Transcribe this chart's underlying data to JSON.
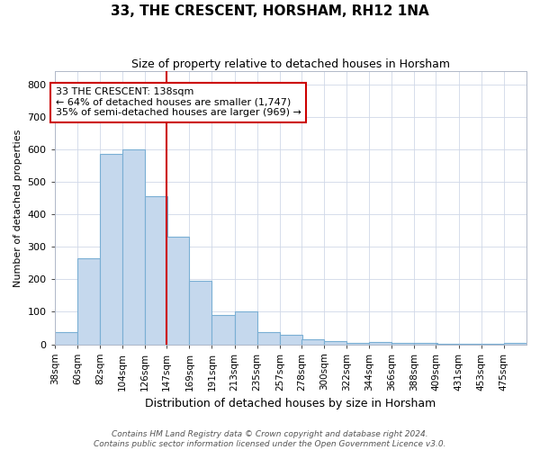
{
  "title": "33, THE CRESCENT, HORSHAM, RH12 1NA",
  "subtitle": "Size of property relative to detached houses in Horsham",
  "xlabel": "Distribution of detached houses by size in Horsham",
  "ylabel": "Number of detached properties",
  "bar_color": "#c5d8ed",
  "bar_edge_color": "#7aafd4",
  "annotation_box_color": "#cc0000",
  "vline_color": "#cc0000",
  "annotation_line1": "33 THE CRESCENT: 138sqm",
  "annotation_line2": "← 64% of detached houses are smaller (1,747)",
  "annotation_line3": "35% of semi-detached houses are larger (969) →",
  "property_size_idx": 5,
  "categories": [
    "38sqm",
    "60sqm",
    "82sqm",
    "104sqm",
    "126sqm",
    "147sqm",
    "169sqm",
    "191sqm",
    "213sqm",
    "235sqm",
    "257sqm",
    "278sqm",
    "300sqm",
    "322sqm",
    "344sqm",
    "366sqm",
    "388sqm",
    "409sqm",
    "431sqm",
    "453sqm",
    "475sqm"
  ],
  "bin_edges": [
    38,
    60,
    82,
    104,
    126,
    147,
    169,
    191,
    213,
    235,
    257,
    278,
    300,
    322,
    344,
    366,
    388,
    409,
    431,
    453,
    475
  ],
  "bin_width": 22,
  "values": [
    38,
    265,
    585,
    600,
    455,
    330,
    195,
    90,
    100,
    38,
    30,
    15,
    10,
    5,
    8,
    5,
    3,
    2,
    1,
    1,
    5
  ],
  "ylim": [
    0,
    840
  ],
  "yticks": [
    0,
    100,
    200,
    300,
    400,
    500,
    600,
    700,
    800
  ],
  "footer_line1": "Contains HM Land Registry data © Crown copyright and database right 2024.",
  "footer_line2": "Contains public sector information licensed under the Open Government Licence v3.0.",
  "background_color": "#ffffff",
  "grid_color": "#d0d8e8",
  "title_fontsize": 11,
  "subtitle_fontsize": 9,
  "xlabel_fontsize": 9,
  "ylabel_fontsize": 8,
  "ytick_fontsize": 8,
  "xtick_fontsize": 7.5,
  "annotation_fontsize": 8,
  "footer_fontsize": 6.5
}
